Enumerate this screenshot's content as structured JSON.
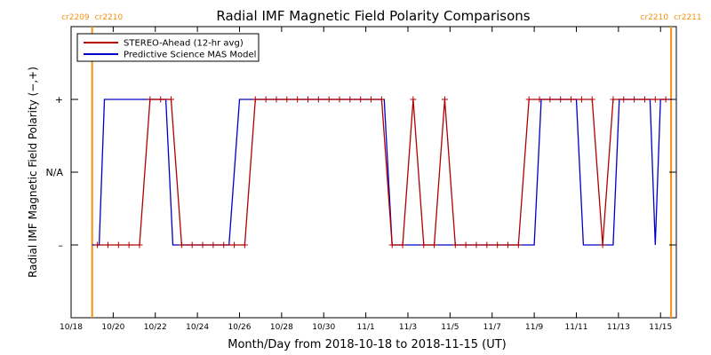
{
  "chart_data": {
    "type": "line",
    "title": "Radial IMF Magnetic Field Polarity Comparisons",
    "xlabel": "Month/Day from 2018-10-18 to 2018-11-15 (UT)",
    "ylabel": "Radial IMF Magnetic Field Polarity (−,+)",
    "x_range": [
      "2018-10-18T00:00",
      "2018-11-15T18:00"
    ],
    "x_ticks": [
      {
        "date": "2018-10-18",
        "label": "10/18"
      },
      {
        "date": "2018-10-20",
        "label": "10/20"
      },
      {
        "date": "2018-10-22",
        "label": "10/22"
      },
      {
        "date": "2018-10-24",
        "label": "10/24"
      },
      {
        "date": "2018-10-26",
        "label": "10/26"
      },
      {
        "date": "2018-10-28",
        "label": "10/28"
      },
      {
        "date": "2018-10-30",
        "label": "10/30"
      },
      {
        "date": "2018-11-01",
        "label": "11/1"
      },
      {
        "date": "2018-11-03",
        "label": "11/3"
      },
      {
        "date": "2018-11-05",
        "label": "11/5"
      },
      {
        "date": "2018-11-07",
        "label": "11/7"
      },
      {
        "date": "2018-11-09",
        "label": "11/9"
      },
      {
        "date": "2018-11-11",
        "label": "11/11"
      },
      {
        "date": "2018-11-13",
        "label": "11/13"
      },
      {
        "date": "2018-11-15",
        "label": "11/15"
      }
    ],
    "y_levels": [
      {
        "value": -1,
        "label": "–"
      },
      {
        "value": 0,
        "label": "N/A"
      },
      {
        "value": 1,
        "label": "+"
      }
    ],
    "y_range": [
      -2,
      2
    ],
    "grid": false,
    "legend": "top-left",
    "rotation_markers": [
      {
        "date": "2018-10-19T00:00",
        "left_label": "cr2209",
        "right_label": "cr2210"
      },
      {
        "date": "2018-11-15T12:00",
        "left_label": "cr2210",
        "right_label": "cr2211"
      }
    ],
    "series": [
      {
        "name": "STEREO-Ahead (12-hr avg)",
        "color": "#b00000",
        "marker": "+",
        "points": [
          [
            "2018-10-19T06:00",
            -1
          ],
          [
            "2018-10-19T18:00",
            -1
          ],
          [
            "2018-10-20T06:00",
            -1
          ],
          [
            "2018-10-20T18:00",
            -1
          ],
          [
            "2018-10-21T06:00",
            -1
          ],
          [
            "2018-10-21T18:00",
            1
          ],
          [
            "2018-10-22T06:00",
            1
          ],
          [
            "2018-10-22T18:00",
            1
          ],
          [
            "2018-10-23T06:00",
            -1
          ],
          [
            "2018-10-23T18:00",
            -1
          ],
          [
            "2018-10-24T06:00",
            -1
          ],
          [
            "2018-10-24T18:00",
            -1
          ],
          [
            "2018-10-25T06:00",
            -1
          ],
          [
            "2018-10-25T18:00",
            -1
          ],
          [
            "2018-10-26T06:00",
            -1
          ],
          [
            "2018-10-26T18:00",
            1
          ],
          [
            "2018-10-27T06:00",
            1
          ],
          [
            "2018-10-27T18:00",
            1
          ],
          [
            "2018-10-28T06:00",
            1
          ],
          [
            "2018-10-28T18:00",
            1
          ],
          [
            "2018-10-29T06:00",
            1
          ],
          [
            "2018-10-29T18:00",
            1
          ],
          [
            "2018-10-30T06:00",
            1
          ],
          [
            "2018-10-30T18:00",
            1
          ],
          [
            "2018-10-31T06:00",
            1
          ],
          [
            "2018-10-31T18:00",
            1
          ],
          [
            "2018-11-01T06:00",
            1
          ],
          [
            "2018-11-01T18:00",
            1
          ],
          [
            "2018-11-02T06:00",
            -1
          ],
          [
            "2018-11-02T18:00",
            -1
          ],
          [
            "2018-11-03T06:00",
            1
          ],
          [
            "2018-11-03T18:00",
            -1
          ],
          [
            "2018-11-04T06:00",
            -1
          ],
          [
            "2018-11-04T18:00",
            1
          ],
          [
            "2018-11-05T06:00",
            -1
          ],
          [
            "2018-11-05T18:00",
            -1
          ],
          [
            "2018-11-06T06:00",
            -1
          ],
          [
            "2018-11-06T18:00",
            -1
          ],
          [
            "2018-11-07T06:00",
            -1
          ],
          [
            "2018-11-07T18:00",
            -1
          ],
          [
            "2018-11-08T06:00",
            -1
          ],
          [
            "2018-11-08T18:00",
            1
          ],
          [
            "2018-11-09T06:00",
            1
          ],
          [
            "2018-11-09T18:00",
            1
          ],
          [
            "2018-11-10T06:00",
            1
          ],
          [
            "2018-11-10T18:00",
            1
          ],
          [
            "2018-11-11T06:00",
            1
          ],
          [
            "2018-11-11T18:00",
            1
          ],
          [
            "2018-11-12T06:00",
            -1
          ],
          [
            "2018-11-12T18:00",
            1
          ],
          [
            "2018-11-13T06:00",
            1
          ],
          [
            "2018-11-13T18:00",
            1
          ],
          [
            "2018-11-14T06:00",
            1
          ],
          [
            "2018-11-14T18:00",
            1
          ],
          [
            "2018-11-15T06:00",
            1
          ]
        ]
      },
      {
        "name": "Predictive Science MAS Model",
        "color": "#0000c8",
        "marker": "",
        "points": [
          [
            "2018-10-19T00:00",
            -1
          ],
          [
            "2018-10-19T08:00",
            -1
          ],
          [
            "2018-10-19T14:00",
            1
          ],
          [
            "2018-10-22T12:00",
            1
          ],
          [
            "2018-10-22T20:00",
            -1
          ],
          [
            "2018-10-25T12:00",
            -1
          ],
          [
            "2018-10-26T00:00",
            1
          ],
          [
            "2018-11-01T21:00",
            1
          ],
          [
            "2018-11-02T06:00",
            -1
          ],
          [
            "2018-11-09T00:00",
            -1
          ],
          [
            "2018-11-09T08:00",
            1
          ],
          [
            "2018-11-11T00:00",
            1
          ],
          [
            "2018-11-11T08:00",
            -1
          ],
          [
            "2018-11-12T18:00",
            -1
          ],
          [
            "2018-11-13T01:00",
            1
          ],
          [
            "2018-11-14T12:00",
            1
          ],
          [
            "2018-11-14T18:00",
            -1
          ],
          [
            "2018-11-15T00:00",
            1
          ],
          [
            "2018-11-15T12:00",
            1
          ]
        ]
      }
    ]
  }
}
